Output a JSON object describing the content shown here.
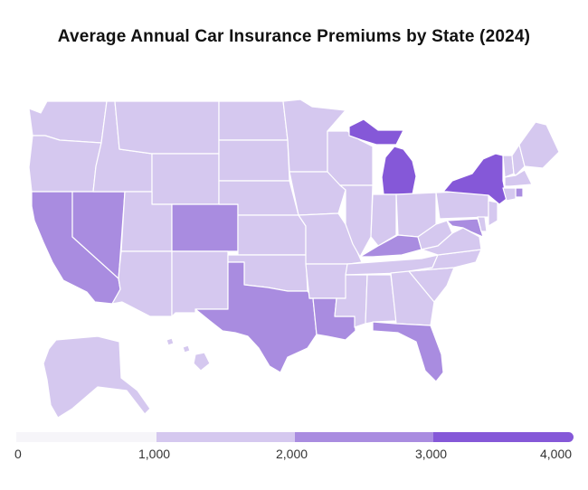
{
  "title": "Average Annual Car Insurance Premiums by State (2024)",
  "legend": {
    "ticks": [
      "0",
      "1,000",
      "2,000",
      "3,000",
      "4,000"
    ],
    "bins": [
      {
        "from": 0,
        "to": 1000,
        "color": "#f6f5f9"
      },
      {
        "from": 1000,
        "to": 2000,
        "color": "#d5c8ef"
      },
      {
        "from": 2000,
        "to": 3000,
        "color": "#a98ce0"
      },
      {
        "from": 3000,
        "to": 4000,
        "color": "#8558d8"
      }
    ]
  },
  "colors": {
    "tier1": "#d5c8ef",
    "tier2": "#a98ce0",
    "tier3": "#8558d8",
    "border": "#ffffff"
  },
  "highlighted_states": {
    "tier3": [
      "Michigan",
      "New York"
    ],
    "tier2": [
      "California",
      "Nevada",
      "Colorado",
      "Texas",
      "Louisiana",
      "Florida",
      "Kentucky",
      "Maryland",
      "Rhode Island"
    ]
  }
}
